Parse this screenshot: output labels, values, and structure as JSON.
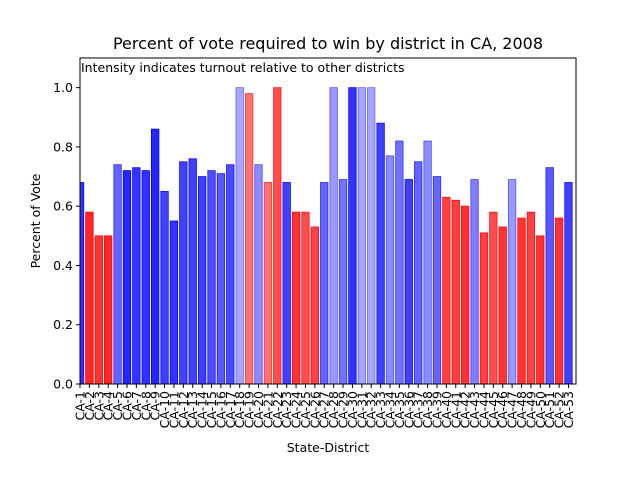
{
  "chart_data": {
    "type": "bar",
    "title": "Percent of vote required to win by district in CA, 2008",
    "annotation": "Intensity indicates turnout relative to other districts",
    "xlabel": "State-District",
    "ylabel": "Percent of Vote",
    "ylim": [
      0,
      1.1
    ],
    "yticks": [
      0.0,
      0.2,
      0.4,
      0.6,
      0.8,
      1.0
    ],
    "ytick_labels": [
      "0.0",
      "0.2",
      "0.4",
      "0.6",
      "0.8",
      "1.0"
    ],
    "grid": false,
    "categories": [
      "CA-1",
      "CA-2",
      "CA-3",
      "CA-4",
      "CA-5",
      "CA-6",
      "CA-7",
      "CA-8",
      "CA-9",
      "CA-10",
      "CA-11",
      "CA-12",
      "CA-13",
      "CA-14",
      "CA-15",
      "CA-16",
      "CA-17",
      "CA-18",
      "CA-19",
      "CA-20",
      "CA-21",
      "CA-22",
      "CA-23",
      "CA-24",
      "CA-25",
      "CA-26",
      "CA-27",
      "CA-28",
      "CA-29",
      "CA-30",
      "CA-31",
      "CA-32",
      "CA-33",
      "CA-34",
      "CA-35",
      "CA-36",
      "CA-37",
      "CA-38",
      "CA-39",
      "CA-40",
      "CA-41",
      "CA-42",
      "CA-43",
      "CA-44",
      "CA-45",
      "CA-46",
      "CA-47",
      "CA-48",
      "CA-49",
      "CA-50",
      "CA-51",
      "CA-52",
      "CA-53"
    ],
    "values": [
      0.68,
      0.58,
      0.5,
      0.5,
      0.74,
      0.72,
      0.73,
      0.72,
      0.86,
      0.65,
      0.55,
      0.75,
      0.76,
      0.7,
      0.72,
      0.71,
      0.74,
      1.0,
      0.98,
      0.74,
      0.68,
      1.0,
      0.68,
      0.58,
      0.58,
      0.53,
      0.68,
      1.0,
      0.69,
      1.0,
      1.0,
      1.0,
      0.88,
      0.77,
      0.82,
      0.69,
      0.75,
      0.82,
      0.7,
      0.63,
      0.62,
      0.6,
      0.69,
      0.51,
      0.58,
      0.53,
      0.69,
      0.56,
      0.58,
      0.5,
      0.73,
      0.56,
      0.68
    ],
    "party": [
      "D",
      "R",
      "R",
      "R",
      "D",
      "D",
      "D",
      "D",
      "D",
      "D",
      "D",
      "D",
      "D",
      "D",
      "D",
      "D",
      "D",
      "D",
      "R",
      "D",
      "R",
      "R",
      "D",
      "R",
      "R",
      "R",
      "D",
      "D",
      "D",
      "D",
      "D",
      "D",
      "D",
      "D",
      "D",
      "D",
      "D",
      "D",
      "D",
      "R",
      "R",
      "R",
      "D",
      "R",
      "R",
      "R",
      "D",
      "R",
      "R",
      "R",
      "D",
      "R",
      "D"
    ],
    "intensity": [
      0.8,
      0.85,
      0.8,
      0.85,
      0.6,
      0.85,
      0.8,
      0.8,
      0.85,
      0.75,
      0.8,
      0.75,
      0.75,
      0.75,
      0.7,
      0.65,
      0.7,
      0.35,
      0.55,
      0.45,
      0.55,
      0.7,
      0.75,
      0.8,
      0.7,
      0.75,
      0.6,
      0.4,
      0.55,
      0.8,
      0.35,
      0.35,
      0.75,
      0.45,
      0.55,
      0.75,
      0.6,
      0.45,
      0.6,
      0.75,
      0.75,
      0.8,
      0.5,
      0.75,
      0.7,
      0.8,
      0.4,
      0.8,
      0.75,
      0.8,
      0.65,
      0.8,
      0.75
    ],
    "colors": {
      "D": "#0000ff",
      "R": "#ff0000"
    }
  }
}
